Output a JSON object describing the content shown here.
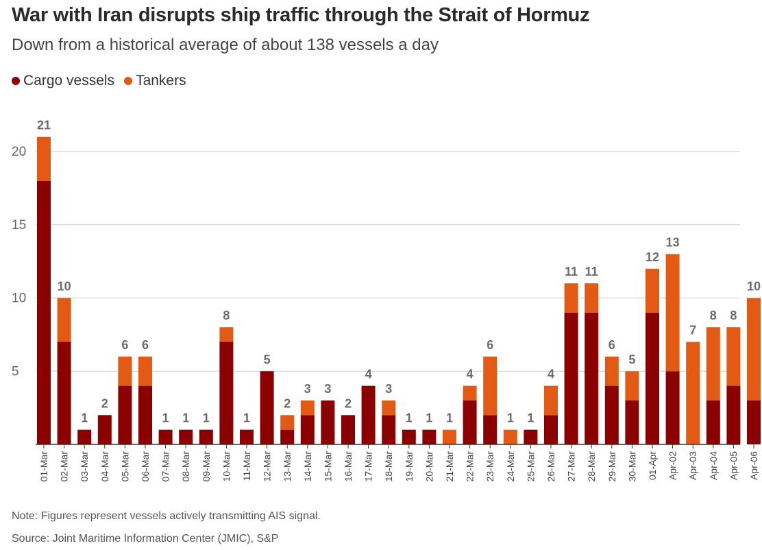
{
  "title": "War with Iran disrupts ship traffic through the Strait of Hormuz",
  "subtitle": "Down from a historical average of about 138 vessels a day",
  "legend": {
    "cargo_label": "Cargo vessels",
    "tankers_label": "Tankers"
  },
  "colors": {
    "cargo": "#8b0000",
    "tankers": "#e35a14",
    "grid": "#cccccc",
    "axis": "#333333",
    "total_label": "#6b6b6b"
  },
  "note": "Note: Figures represent vessels actively transmitting AIS signal.",
  "source": "Source: Joint Maritime Information Center (JMIC), S&P",
  "chart_data": {
    "type": "bar",
    "stacked": true,
    "categories": [
      "01-Mar",
      "02-Mar",
      "03-Mar",
      "04-Mar",
      "05-Mar",
      "06-Mar",
      "07-Mar",
      "08-Mar",
      "09-Mar",
      "10-Mar",
      "11-Mar",
      "12-Mar",
      "13-Mar",
      "14-Mar",
      "15-Mar",
      "16-Mar",
      "17-Mar",
      "18-Mar",
      "19-Mar",
      "20-Mar",
      "21-Mar",
      "22-Mar",
      "23-Mar",
      "24-Mar",
      "25-Mar",
      "26-Mar",
      "27-Mar",
      "28-Mar",
      "29-Mar",
      "30-Mar",
      "01-Apr",
      "Apr-02",
      "Apr-03",
      "Apr-04",
      "Apr-05",
      "Apr-06"
    ],
    "series": [
      {
        "name": "Cargo vessels",
        "values": [
          18,
          7,
          1,
          2,
          4,
          4,
          1,
          1,
          1,
          7,
          1,
          5,
          1,
          2,
          3,
          2,
          4,
          2,
          1,
          1,
          0,
          3,
          2,
          0,
          1,
          2,
          9,
          9,
          4,
          3,
          9,
          5,
          0,
          3,
          4,
          3
        ]
      },
      {
        "name": "Tankers",
        "values": [
          3,
          3,
          0,
          0,
          2,
          2,
          0,
          0,
          0,
          1,
          0,
          0,
          1,
          1,
          0,
          0,
          0,
          1,
          0,
          0,
          1,
          1,
          4,
          1,
          0,
          2,
          2,
          2,
          2,
          2,
          3,
          8,
          7,
          5,
          4,
          7
        ]
      }
    ],
    "totals": [
      21,
      10,
      1,
      2,
      6,
      6,
      1,
      1,
      1,
      8,
      1,
      5,
      2,
      3,
      3,
      2,
      4,
      3,
      1,
      1,
      1,
      4,
      6,
      1,
      1,
      4,
      11,
      11,
      6,
      5,
      12,
      13,
      7,
      8,
      8,
      10
    ],
    "ylim": [
      0,
      21
    ],
    "yticks": [
      5,
      10,
      15,
      20
    ],
    "grid": true,
    "legend_position": "top-left"
  }
}
